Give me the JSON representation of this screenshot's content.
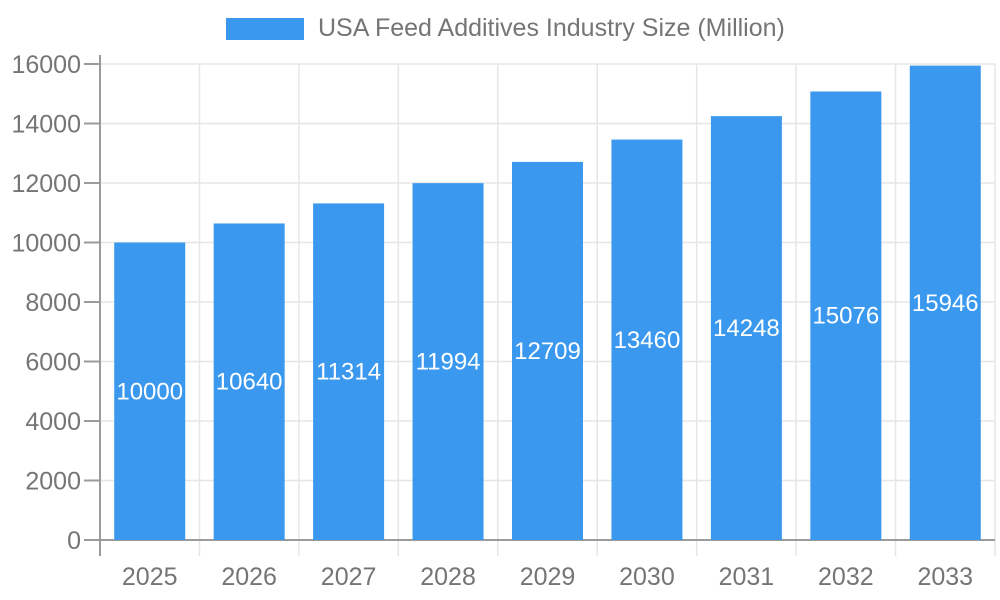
{
  "chart_data": {
    "type": "bar",
    "legend_entries": [
      "USA Feed Additives Industry Size (Million)"
    ],
    "legend_position": "top",
    "categories": [
      "2025",
      "2026",
      "2027",
      "2028",
      "2029",
      "2030",
      "2031",
      "2032",
      "2033"
    ],
    "values": [
      10000,
      10640,
      11314,
      11994,
      12709,
      13460,
      14248,
      15076,
      15946
    ],
    "title": "",
    "xlabel": "",
    "ylabel": "",
    "ylim": [
      0,
      16000
    ],
    "ytick_step": 2000,
    "yticks": [
      0,
      2000,
      4000,
      6000,
      8000,
      10000,
      12000,
      14000,
      16000
    ],
    "grid": true,
    "bar_labels_visible": true,
    "colors": {
      "bar": "#3A99EE",
      "bar_label": "#FFFFFF",
      "axis": "#9B9B9B",
      "grid": "#E6E6E6",
      "tick_label": "#757575",
      "legend_text": "#757575",
      "background": "#FFFFFF"
    }
  }
}
